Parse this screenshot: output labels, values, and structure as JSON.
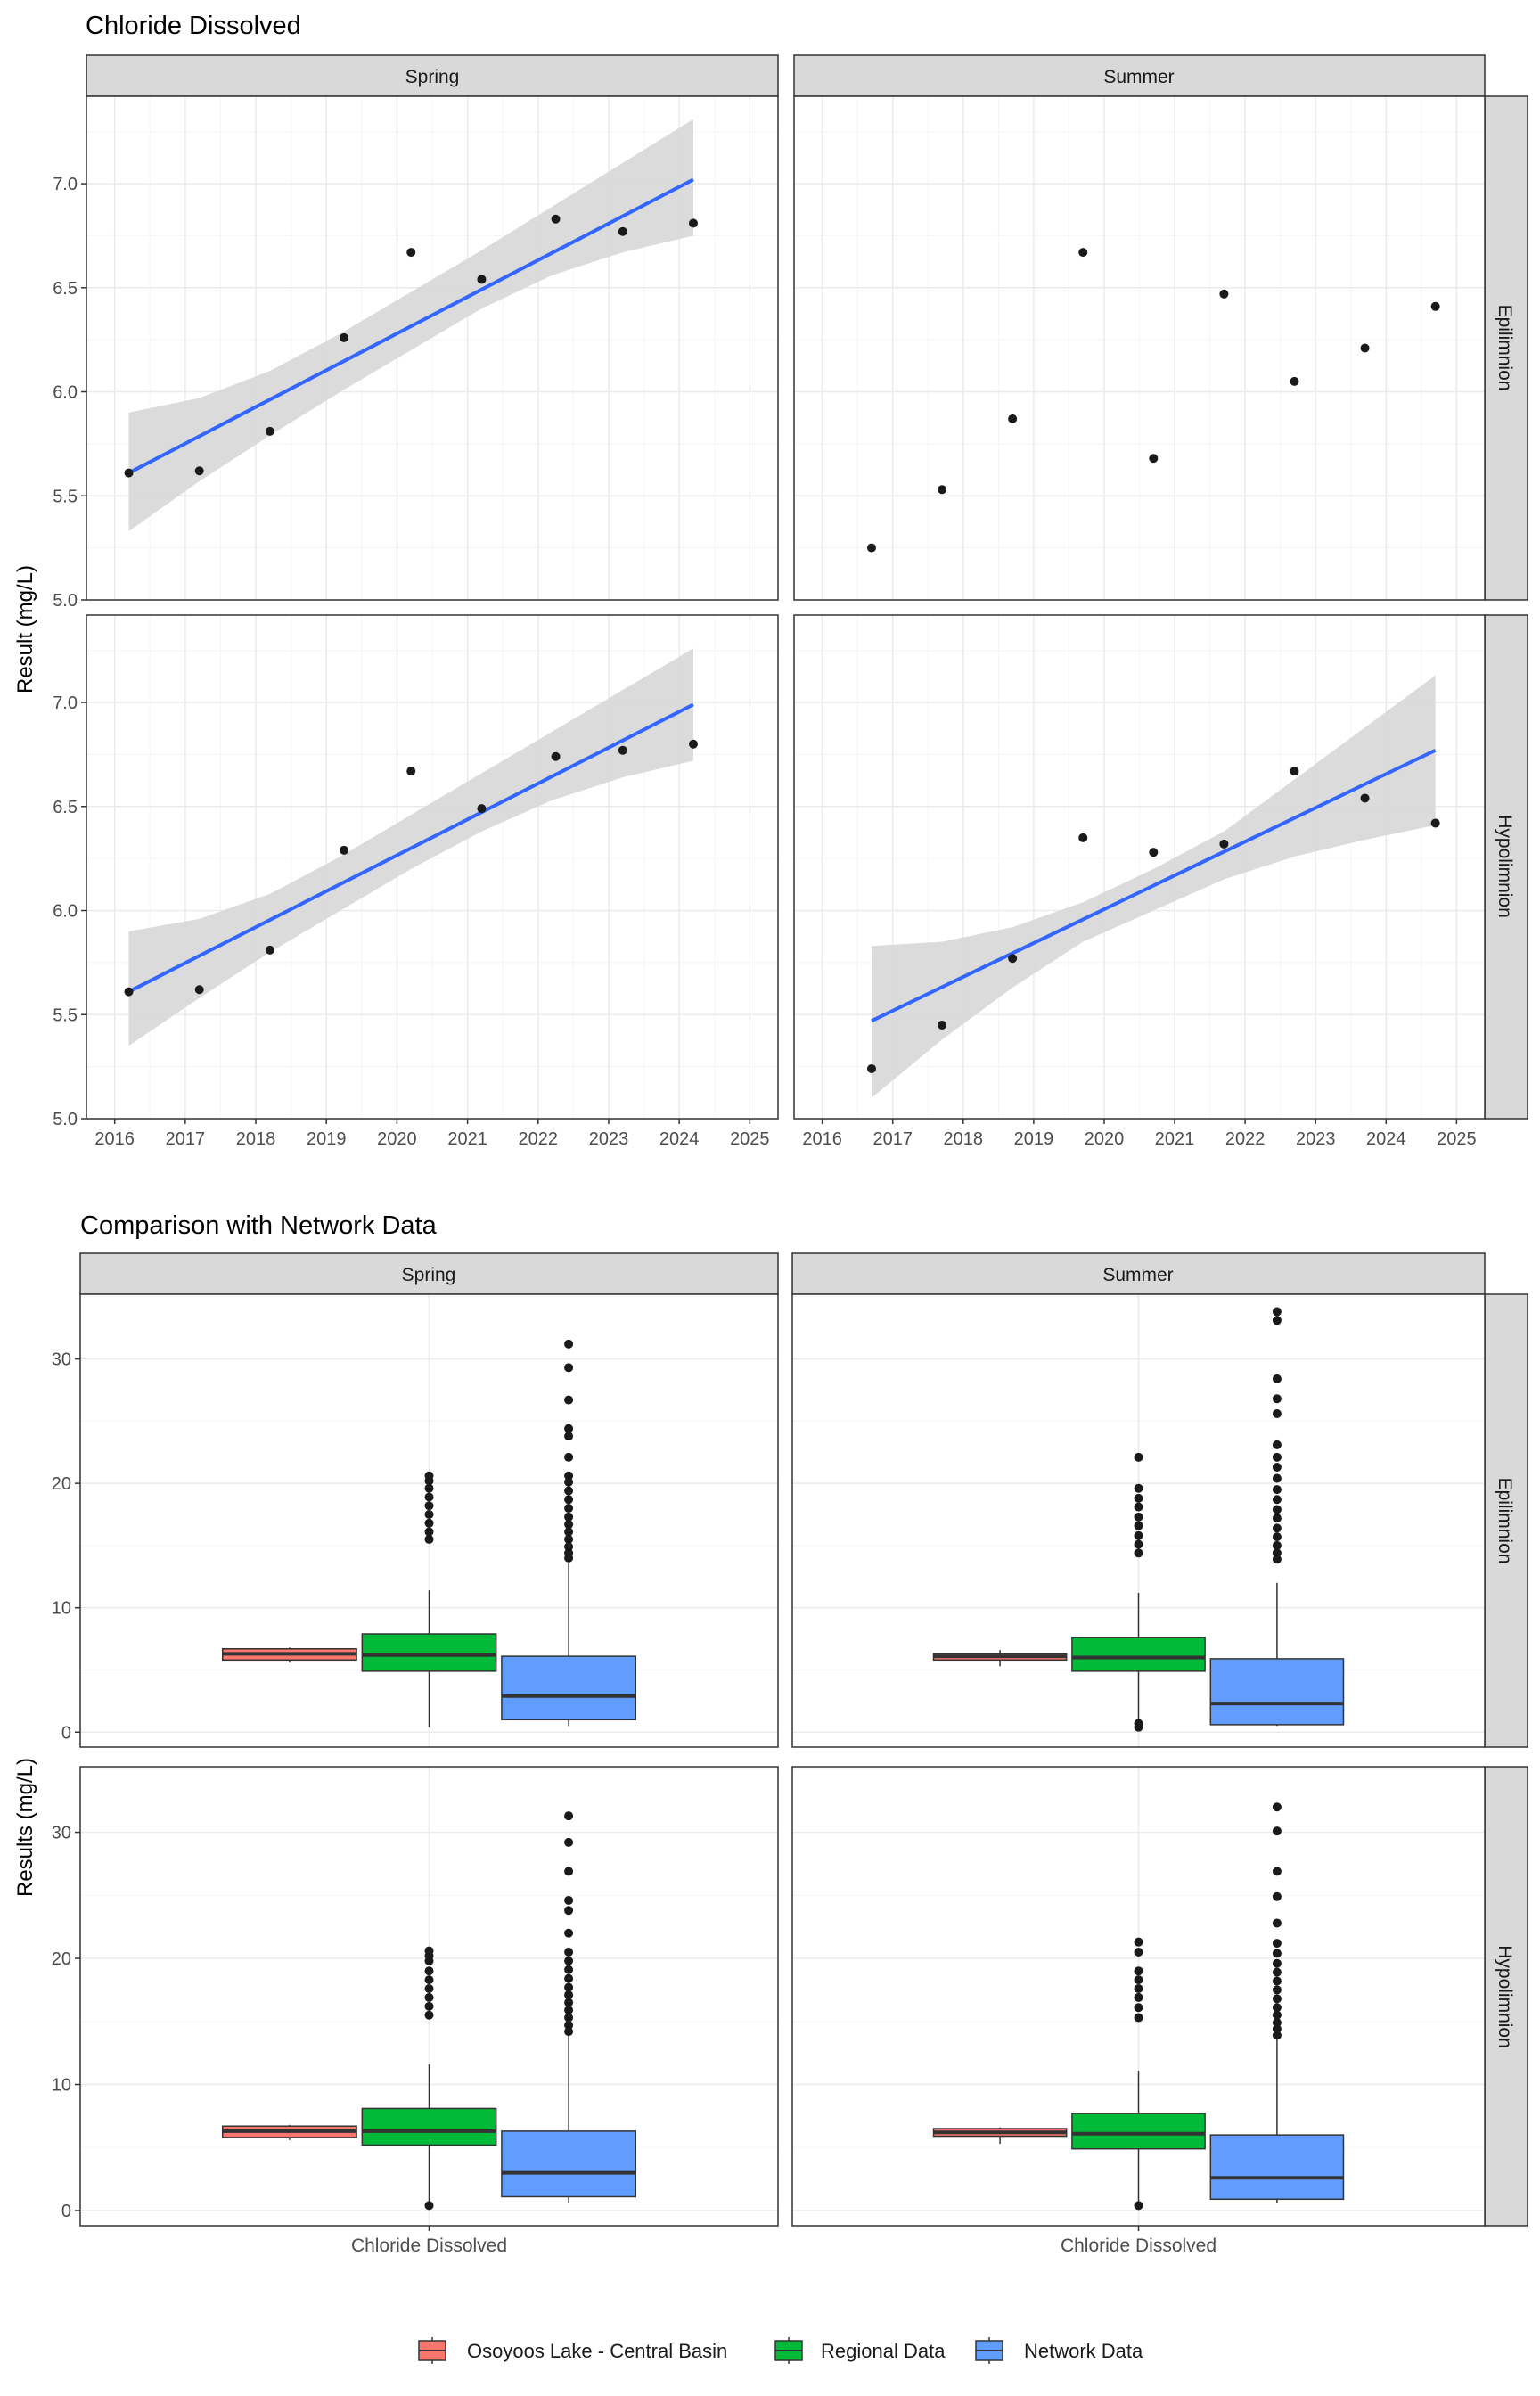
{
  "chart_data": [
    {
      "type": "scatter",
      "title": "Chloride Dissolved",
      "ylabel": "Result (mg/L)",
      "xlabel": "",
      "xlim": [
        2015.6,
        2025.4
      ],
      "ylim": [
        5.0,
        7.42
      ],
      "xticks": [
        "2016",
        "2017",
        "2018",
        "2019",
        "2020",
        "2021",
        "2022",
        "2023",
        "2024",
        "2025"
      ],
      "yticks": [
        "5.0",
        "5.5",
        "6.0",
        "6.5",
        "7.0"
      ],
      "column_facets": [
        "Spring",
        "Summer"
      ],
      "row_facets": [
        "Epilimnion",
        "Hypolimnion"
      ],
      "grid": true,
      "panels": [
        {
          "column": "Spring",
          "row": "Epilimnion",
          "points": [
            [
              2016.2,
              5.61
            ],
            [
              2017.2,
              5.62
            ],
            [
              2018.2,
              5.81
            ],
            [
              2019.25,
              6.26
            ],
            [
              2020.2,
              6.67
            ],
            [
              2021.2,
              6.54
            ],
            [
              2022.25,
              6.83
            ],
            [
              2023.2,
              6.77
            ],
            [
              2024.2,
              6.81
            ]
          ],
          "trend": {
            "x": [
              2016.2,
              2024.2
            ],
            "y": [
              5.61,
              7.02
            ]
          },
          "band": {
            "x": [
              2016.2,
              2017.2,
              2018.2,
              2019.2,
              2020.2,
              2021.2,
              2022.2,
              2023.2,
              2024.2
            ],
            "lower": [
              5.33,
              5.57,
              5.79,
              6.0,
              6.2,
              6.4,
              6.56,
              6.67,
              6.75
            ],
            "upper": [
              5.9,
              5.97,
              6.1,
              6.28,
              6.48,
              6.68,
              6.89,
              7.1,
              7.31
            ]
          }
        },
        {
          "column": "Summer",
          "row": "Epilimnion",
          "points": [
            [
              2016.7,
              5.25
            ],
            [
              2017.7,
              5.53
            ],
            [
              2018.7,
              5.87
            ],
            [
              2019.7,
              6.67
            ],
            [
              2020.7,
              5.68
            ],
            [
              2021.7,
              6.47
            ],
            [
              2022.7,
              6.05
            ],
            [
              2023.7,
              6.21
            ],
            [
              2024.7,
              6.41
            ]
          ]
        },
        {
          "column": "Spring",
          "row": "Hypolimnion",
          "points": [
            [
              2016.2,
              5.61
            ],
            [
              2017.2,
              5.62
            ],
            [
              2018.2,
              5.81
            ],
            [
              2019.25,
              6.29
            ],
            [
              2020.2,
              6.67
            ],
            [
              2021.2,
              6.49
            ],
            [
              2022.25,
              6.74
            ],
            [
              2023.2,
              6.77
            ],
            [
              2024.2,
              6.8
            ]
          ],
          "trend": {
            "x": [
              2016.2,
              2024.2
            ],
            "y": [
              5.61,
              6.99
            ]
          },
          "band": {
            "x": [
              2016.2,
              2017.2,
              2018.2,
              2019.2,
              2020.2,
              2021.2,
              2022.2,
              2023.2,
              2024.2
            ],
            "lower": [
              5.35,
              5.58,
              5.8,
              6.0,
              6.2,
              6.38,
              6.53,
              6.64,
              6.72
            ],
            "upper": [
              5.9,
              5.96,
              6.08,
              6.26,
              6.46,
              6.66,
              6.86,
              7.06,
              7.26
            ]
          }
        },
        {
          "column": "Summer",
          "row": "Hypolimnion",
          "points": [
            [
              2016.7,
              5.24
            ],
            [
              2017.7,
              5.45
            ],
            [
              2018.7,
              5.77
            ],
            [
              2019.7,
              6.35
            ],
            [
              2020.7,
              6.28
            ],
            [
              2021.7,
              6.32
            ],
            [
              2022.7,
              6.67
            ],
            [
              2023.7,
              6.54
            ],
            [
              2024.7,
              6.42
            ]
          ],
          "trend": {
            "x": [
              2016.7,
              2024.7
            ],
            "y": [
              5.47,
              6.77
            ]
          },
          "band": {
            "x": [
              2016.7,
              2017.7,
              2018.7,
              2019.7,
              2020.7,
              2021.7,
              2022.7,
              2023.7,
              2024.7
            ],
            "lower": [
              5.1,
              5.38,
              5.63,
              5.85,
              6.0,
              6.15,
              6.26,
              6.34,
              6.41
            ],
            "upper": [
              5.83,
              5.85,
              5.92,
              6.04,
              6.2,
              6.38,
              6.63,
              6.88,
              7.13
            ]
          }
        }
      ]
    },
    {
      "type": "box",
      "title": "Comparison with Network Data",
      "ylabel": "Results (mg/L)",
      "xlabel": "",
      "categories": [
        "Chloride Dissolved"
      ],
      "ylim": [
        -1.2,
        35.2
      ],
      "yticks": [
        0,
        10,
        20,
        30
      ],
      "column_facets": [
        "Spring",
        "Summer"
      ],
      "row_facets": [
        "Epilimnion",
        "Hypolimnion"
      ],
      "grid": true,
      "legend_position": "bottom",
      "legend": [
        {
          "name": "Osoyoos Lake - Central Basin",
          "color": "#f8766d"
        },
        {
          "name": "Regional Data",
          "color": "#00ba38"
        },
        {
          "name": "Network Data",
          "color": "#619cff"
        }
      ],
      "panels": [
        {
          "column": "Spring",
          "row": "Epilimnion",
          "boxes": [
            {
              "series": "Osoyoos Lake - Central Basin",
              "low": 5.6,
              "q1": 5.8,
              "median": 6.3,
              "q3": 6.7,
              "high": 6.8,
              "outliers": []
            },
            {
              "series": "Regional Data",
              "low": 0.4,
              "q1": 4.9,
              "median": 6.2,
              "q3": 7.9,
              "high": 11.4,
              "outliers": [
                15.5,
                16.1,
                16.8,
                17.5,
                18.2,
                18.9,
                19.6,
                20.2,
                20.6
              ]
            },
            {
              "series": "Network Data",
              "low": 0.5,
              "q1": 1.0,
              "median": 2.9,
              "q3": 6.1,
              "high": 13.6,
              "outliers": [
                14.0,
                14.4,
                14.9,
                15.5,
                16.1,
                16.7,
                17.3,
                18.0,
                18.7,
                19.4,
                20.1,
                20.6,
                22.1,
                23.8,
                24.4,
                26.7,
                29.3,
                31.2
              ]
            }
          ]
        },
        {
          "column": "Summer",
          "row": "Epilimnion",
          "boxes": [
            {
              "series": "Osoyoos Lake - Central Basin",
              "low": 5.3,
              "q1": 5.8,
              "median": 6.1,
              "q3": 6.3,
              "high": 6.6,
              "outliers": []
            },
            {
              "series": "Regional Data",
              "low": 1.0,
              "q1": 4.9,
              "median": 6.0,
              "q3": 7.6,
              "high": 11.2,
              "outliers": [
                0.4,
                0.7,
                14.4,
                15.1,
                15.8,
                16.6,
                17.3,
                18.1,
                18.8,
                19.6,
                22.1
              ]
            },
            {
              "series": "Network Data",
              "low": 0.5,
              "q1": 0.6,
              "median": 2.3,
              "q3": 5.9,
              "high": 12.0,
              "outliers": [
                13.9,
                14.4,
                15.0,
                15.7,
                16.4,
                17.2,
                17.9,
                18.7,
                19.5,
                20.4,
                21.3,
                22.1,
                23.1,
                25.6,
                26.8,
                28.4,
                33.1,
                33.8
              ]
            }
          ]
        },
        {
          "column": "Spring",
          "row": "Hypolimnion",
          "boxes": [
            {
              "series": "Osoyoos Lake - Central Basin",
              "low": 5.6,
              "q1": 5.8,
              "median": 6.3,
              "q3": 6.7,
              "high": 6.8,
              "outliers": []
            },
            {
              "series": "Regional Data",
              "low": 0.6,
              "q1": 5.2,
              "median": 6.3,
              "q3": 8.1,
              "high": 11.6,
              "outliers": [
                0.4,
                15.5,
                16.2,
                16.9,
                17.6,
                18.3,
                19.0,
                19.8,
                20.2,
                20.6
              ]
            },
            {
              "series": "Network Data",
              "low": 0.6,
              "q1": 1.1,
              "median": 3.0,
              "q3": 6.3,
              "high": 13.9,
              "outliers": [
                14.2,
                14.7,
                15.3,
                15.9,
                16.5,
                17.1,
                17.7,
                18.4,
                19.1,
                19.8,
                20.5,
                22.0,
                23.8,
                24.6,
                26.9,
                29.2,
                31.3
              ]
            }
          ]
        },
        {
          "column": "Summer",
          "row": "Hypolimnion",
          "boxes": [
            {
              "series": "Osoyoos Lake - Central Basin",
              "low": 5.3,
              "q1": 5.9,
              "median": 6.2,
              "q3": 6.5,
              "high": 6.6,
              "outliers": []
            },
            {
              "series": "Regional Data",
              "low": 0.6,
              "q1": 4.9,
              "median": 6.1,
              "q3": 7.7,
              "high": 11.1,
              "outliers": [
                0.4,
                15.3,
                16.1,
                16.9,
                17.6,
                18.3,
                19.0,
                20.5,
                21.3
              ]
            },
            {
              "series": "Network Data",
              "low": 0.6,
              "q1": 0.9,
              "median": 2.6,
              "q3": 6.0,
              "high": 13.6,
              "outliers": [
                13.9,
                14.4,
                14.9,
                15.5,
                16.1,
                16.8,
                17.5,
                18.2,
                18.9,
                19.6,
                20.4,
                21.2,
                22.8,
                24.9,
                26.9,
                30.1,
                32.0
              ]
            }
          ]
        }
      ]
    }
  ],
  "colors": {
    "trend_line": "#3366ff",
    "confidence_band": "#d9d9d9",
    "points": "#1a1a1a",
    "strip_fill": "#d9d9d9",
    "grid_major": "#ebebeb",
    "grid_minor": "#f5f5f5",
    "panel_border": "#333333"
  }
}
